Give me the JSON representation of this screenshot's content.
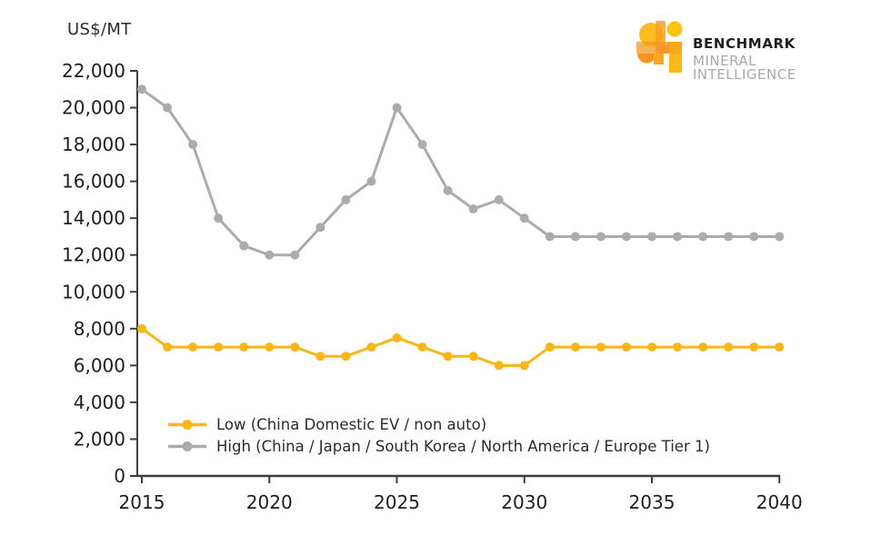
{
  "header": {
    "unit_label": "US$/MT"
  },
  "logo": {
    "brand": "BENCHMARK",
    "line2": "MINERAL",
    "line3": "INTELLIGENCE",
    "colors": {
      "brand_text": "#231f20",
      "sub_text": "#a6a8ab",
      "yellow": "#FDB813",
      "amber": "#F8A11B",
      "orange": "#F7941D",
      "dot_yellow": "#FFC20E"
    }
  },
  "chart_data": {
    "type": "line",
    "x": [
      2015,
      2016,
      2017,
      2018,
      2019,
      2020,
      2021,
      2022,
      2023,
      2024,
      2025,
      2026,
      2027,
      2028,
      2029,
      2030,
      2031,
      2032,
      2033,
      2034,
      2035,
      2036,
      2037,
      2038,
      2039,
      2040
    ],
    "series": [
      {
        "name": "Low (China Domestic EV / non auto)",
        "color": "#FBB615",
        "values": [
          8000,
          7000,
          7000,
          7000,
          7000,
          7000,
          7000,
          6500,
          6500,
          7000,
          7500,
          7000,
          6500,
          6500,
          6000,
          6000,
          7000,
          7000,
          7000,
          7000,
          7000,
          7000,
          7000,
          7000,
          7000,
          7000
        ]
      },
      {
        "name": "High (China / Japan / South Korea / North America / Europe Tier 1)",
        "color": "#ABABAB",
        "values": [
          21000,
          20000,
          18000,
          14000,
          12500,
          12000,
          12000,
          13500,
          15000,
          16000,
          20000,
          18000,
          15500,
          14500,
          15000,
          14000,
          13000,
          13000,
          13000,
          13000,
          13000,
          13000,
          13000,
          13000,
          13000,
          13000
        ]
      }
    ],
    "ylabel": "US$/MT",
    "xlabel": "",
    "ylim": [
      0,
      22000
    ],
    "ytick_step": 2000,
    "xticks": [
      2015,
      2020,
      2025,
      2030,
      2035,
      2040
    ],
    "grid": false,
    "legend_position": "inside-bottom-left",
    "axis_color": "#3c3c3c",
    "tick_text_color": "#1e1e1e"
  }
}
